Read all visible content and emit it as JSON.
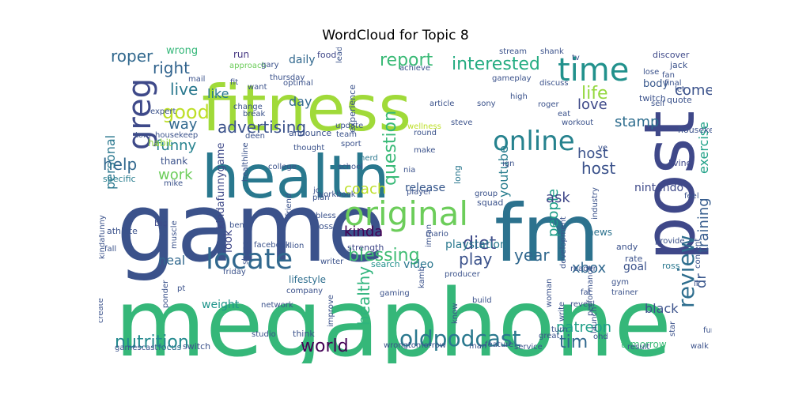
{
  "chart_data": {
    "type": "wordcloud",
    "title": "WordCloud for Topic 8",
    "words": [
      {
        "text": "megaphone",
        "color": "#35b779"
      },
      {
        "text": "game",
        "color": "#3b528b"
      },
      {
        "text": "fitness",
        "color": "#a0da39"
      },
      {
        "text": "health",
        "color": "#29788e"
      },
      {
        "text": "fm",
        "color": "#2c728e"
      },
      {
        "text": "post",
        "color": "#3f4889"
      },
      {
        "text": "original",
        "color": "#6ccd5a"
      },
      {
        "text": "time",
        "color": "#21918c"
      },
      {
        "text": "locate",
        "color": "#31688e"
      },
      {
        "text": "online",
        "color": "#26828e"
      },
      {
        "text": "greg",
        "color": "#3e4989"
      },
      {
        "text": "oldpodcast",
        "color": "#2a788e"
      },
      {
        "text": "review",
        "color": "#2e6e8e"
      },
      {
        "text": "nutrition",
        "color": "#23898e"
      },
      {
        "text": "report",
        "color": "#3aba76"
      },
      {
        "text": "interested",
        "color": "#25ac82"
      },
      {
        "text": "good",
        "color": "#bddf26"
      },
      {
        "text": "advertising",
        "color": "#3b528b"
      },
      {
        "text": "question",
        "color": "#38b977"
      },
      {
        "text": "blessing",
        "color": "#3fbc73"
      },
      {
        "text": "world",
        "color": "#440154"
      },
      {
        "text": "diet",
        "color": "#3e4a89"
      },
      {
        "text": "tim",
        "color": "#31688e"
      },
      {
        "text": "healthy",
        "color": "#2fb47c"
      },
      {
        "text": "life",
        "color": "#95d840"
      },
      {
        "text": "live",
        "color": "#29788e"
      },
      {
        "text": "help",
        "color": "#31688e"
      },
      {
        "text": "coach",
        "color": "#bddf26"
      },
      {
        "text": "play",
        "color": "#3b528b"
      },
      {
        "text": "year",
        "color": "#31688e"
      },
      {
        "text": "training",
        "color": "#365c8d"
      },
      {
        "text": "people",
        "color": "#1f9e89"
      },
      {
        "text": "roper",
        "color": "#31688e"
      },
      {
        "text": "right",
        "color": "#32648e"
      },
      {
        "text": "host",
        "color": "#3b528b"
      },
      {
        "text": "exercise",
        "color": "#1fa187"
      },
      {
        "text": "patreon",
        "color": "#1f9f88"
      },
      {
        "text": "funny",
        "color": "#26828e"
      },
      {
        "text": "personal",
        "color": "#2a778e"
      },
      {
        "text": "kinda",
        "color": "#440154"
      },
      {
        "text": "stamp",
        "color": "#2e6d8e"
      },
      {
        "text": "come",
        "color": "#3b528b"
      },
      {
        "text": "love",
        "color": "#3e4989"
      },
      {
        "text": "dr",
        "color": "#39568c"
      },
      {
        "text": "way",
        "color": "#31688e"
      },
      {
        "text": "day",
        "color": "#31688e"
      },
      {
        "text": "like",
        "color": "#29788e"
      },
      {
        "text": "work",
        "color": "#6ccd5a"
      },
      {
        "text": "youtube",
        "color": "#287d8e"
      },
      {
        "text": "ask",
        "color": "#3f4788"
      },
      {
        "text": "xbox",
        "color": "#31688e"
      },
      {
        "text": "neal",
        "color": "#31688e"
      },
      {
        "text": "release",
        "color": "#38588c"
      },
      {
        "text": "playstation",
        "color": "#29788e"
      },
      {
        "text": "weight",
        "color": "#1f958b"
      },
      {
        "text": "black",
        "color": "#3b528b"
      },
      {
        "text": "nintendo",
        "color": "#3e4989"
      },
      {
        "text": "video",
        "color": "#2a768e"
      },
      {
        "text": "goal",
        "color": "#3b528b"
      },
      {
        "text": "host",
        "color": "#3b528b"
      },
      {
        "text": "look",
        "color": "#3f4889"
      },
      {
        "text": "kindafunnygame",
        "color": "#3e4989"
      },
      {
        "text": "daily",
        "color": "#31688e"
      },
      {
        "text": "news",
        "color": "#2c728e"
      },
      {
        "text": "lifestyle",
        "color": "#2e6e8e"
      },
      {
        "text": "body",
        "color": "#38588c"
      },
      {
        "text": "wrong",
        "color": "#35b779"
      },
      {
        "text": "habit",
        "color": "#95d840"
      },
      {
        "text": "thank",
        "color": "#3b528b"
      },
      {
        "text": "tomorrow",
        "color": "#3aba76"
      },
      {
        "text": "run",
        "color": "#453781"
      },
      {
        "text": "food",
        "color": "#3f4788"
      },
      {
        "text": "strength",
        "color": "#3f4788"
      },
      {
        "text": "ben",
        "color": "#3b528b"
      },
      {
        "text": "athlete",
        "color": "#3b528b"
      },
      {
        "text": "network",
        "color": "#3b528b"
      },
      {
        "text": "switch",
        "color": "#3b528b"
      },
      {
        "text": "focus",
        "color": "#2e6e8e"
      },
      {
        "text": "think",
        "color": "#3b528b"
      },
      {
        "text": "big",
        "color": "#3e4989"
      },
      {
        "text": "specific",
        "color": "#287d8e"
      },
      {
        "text": "andy",
        "color": "#3b528b"
      },
      {
        "text": "rate",
        "color": "#3b528b"
      },
      {
        "text": "squad",
        "color": "#3b528b"
      },
      {
        "text": "long",
        "color": "#2a778e"
      },
      {
        "text": "living",
        "color": "#3f4889"
      },
      {
        "text": "quote",
        "color": "#3b528b"
      },
      {
        "text": "twitch",
        "color": "#3b528b"
      },
      {
        "text": "ross",
        "color": "#2a778e"
      },
      {
        "text": "search",
        "color": "#21918c"
      },
      {
        "text": "loss",
        "color": "#3b528b"
      },
      {
        "text": "announce",
        "color": "#3b528b"
      },
      {
        "text": "experience",
        "color": "#3b528b"
      },
      {
        "text": "article",
        "color": "#3b528b"
      },
      {
        "text": "steve",
        "color": "#3b528b"
      },
      {
        "text": "producer",
        "color": "#3b528b"
      },
      {
        "text": "wellness",
        "color": "#bddf26"
      },
      {
        "text": "stream",
        "color": "#3b528b"
      },
      {
        "text": "discover",
        "color": "#3e4989"
      },
      {
        "text": "jack",
        "color": "#3b528b"
      },
      {
        "text": "approach",
        "color": "#6ccd5a"
      },
      {
        "text": "change",
        "color": "#3b528b"
      },
      {
        "text": "want",
        "color": "#3b528b"
      },
      {
        "text": "optimal",
        "color": "#3b528b"
      },
      {
        "text": "housekeeping",
        "color": "#3b528b"
      },
      {
        "text": "ign",
        "color": "#3b528b"
      },
      {
        "text": "nerd",
        "color": "#2a778e"
      },
      {
        "text": "nia",
        "color": "#3b528b"
      },
      {
        "text": "group",
        "color": "#3b528b"
      },
      {
        "text": "player",
        "color": "#3b528b"
      },
      {
        "text": "friend",
        "color": "#3b528b"
      },
      {
        "text": "mike",
        "color": "#3b528b"
      },
      {
        "text": "week",
        "color": "#3b528b"
      },
      {
        "text": "muscle",
        "color": "#3b528b"
      },
      {
        "text": "million",
        "color": "#3b528b"
      },
      {
        "text": "facebook",
        "color": "#3b528b"
      },
      {
        "text": "writer",
        "color": "#3b528b"
      },
      {
        "text": "friday",
        "color": "#3b528b"
      },
      {
        "text": "performance",
        "color": "#3b528b"
      },
      {
        "text": "development",
        "color": "#3b528b"
      },
      {
        "text": "industry",
        "color": "#3b528b"
      },
      {
        "text": "provide",
        "color": "#3b528b"
      },
      {
        "text": "feel",
        "color": "#3b528b"
      },
      {
        "text": "content",
        "color": "#3b528b"
      },
      {
        "text": "fat",
        "color": "#3b528b"
      },
      {
        "text": "ohd",
        "color": "#3b528b"
      },
      {
        "text": "reveal",
        "color": "#3b528b"
      },
      {
        "text": "woman",
        "color": "#3b528b"
      },
      {
        "text": "know",
        "color": "#3b528b"
      },
      {
        "text": "build",
        "color": "#3b528b"
      },
      {
        "text": "great",
        "color": "#3b528b"
      },
      {
        "text": "service",
        "color": "#3b528b"
      },
      {
        "text": "feature",
        "color": "#3b528b"
      },
      {
        "text": "man",
        "color": "#3b528b"
      },
      {
        "text": "walk",
        "color": "#3b528b"
      },
      {
        "text": "star",
        "color": "#3b528b"
      },
      {
        "text": "result",
        "color": "#3b528b"
      },
      {
        "text": "create",
        "color": "#3b528b"
      },
      {
        "text": "gamescast",
        "color": "#3b528b"
      },
      {
        "text": "studio",
        "color": "#3b528b"
      },
      {
        "text": "wrongtomorrow",
        "color": "#3b528b"
      },
      {
        "text": "improve",
        "color": "#3b528b"
      },
      {
        "text": "fall",
        "color": "#3b528b"
      },
      {
        "text": "kindafunny",
        "color": "#3b528b"
      },
      {
        "text": "pt",
        "color": "#3b528b"
      },
      {
        "text": "ponder",
        "color": "#3b528b"
      },
      {
        "text": "company",
        "color": "#3b528b"
      },
      {
        "text": "gaming",
        "color": "#3b528b"
      },
      {
        "text": "kamb",
        "color": "#3b528b"
      },
      {
        "text": "mario",
        "color": "#3b528b"
      },
      {
        "text": "imran",
        "color": "#3b528b"
      },
      {
        "text": "bless",
        "color": "#3b528b"
      },
      {
        "text": "plan",
        "color": "#3b528b"
      },
      {
        "text": "workbook",
        "color": "#3b528b"
      },
      {
        "text": "shape",
        "color": "#3b528b"
      },
      {
        "text": "college",
        "color": "#3b528b"
      },
      {
        "text": "school",
        "color": "#3b528b"
      },
      {
        "text": "jc",
        "color": "#3b528b"
      },
      {
        "text": "thought",
        "color": "#3b528b"
      },
      {
        "text": "healthline",
        "color": "#3b528b"
      },
      {
        "text": "deen",
        "color": "#3b528b"
      },
      {
        "text": "housekeep",
        "color": "#3b528b"
      },
      {
        "text": "tom",
        "color": "#3b528b"
      },
      {
        "text": "expert",
        "color": "#3b528b"
      },
      {
        "text": "break",
        "color": "#3b528b"
      },
      {
        "text": "sport",
        "color": "#3b528b"
      },
      {
        "text": "team",
        "color": "#3b528b"
      },
      {
        "text": "update",
        "color": "#3b528b"
      },
      {
        "text": "thursday",
        "color": "#3b528b"
      },
      {
        "text": "gary",
        "color": "#3b528b"
      },
      {
        "text": "lead",
        "color": "#3b528b"
      },
      {
        "text": "achieve",
        "color": "#3b528b"
      },
      {
        "text": "fit",
        "color": "#3b528b"
      },
      {
        "text": "mail",
        "color": "#3b528b"
      },
      {
        "text": "round",
        "color": "#3b528b"
      },
      {
        "text": "make",
        "color": "#3b528b"
      },
      {
        "text": "workout",
        "color": "#3b528b"
      },
      {
        "text": "sony",
        "color": "#3b528b"
      },
      {
        "text": "roger",
        "color": "#3b528b"
      },
      {
        "text": "eat",
        "color": "#3b528b"
      },
      {
        "text": "high",
        "color": "#3b528b"
      },
      {
        "text": "discuss",
        "color": "#3b528b"
      },
      {
        "text": "gameplay",
        "color": "#3b528b"
      },
      {
        "text": "shank",
        "color": "#3b528b"
      },
      {
        "text": "tv",
        "color": "#3b528b"
      },
      {
        "text": "lose",
        "color": "#3b528b"
      },
      {
        "text": "final",
        "color": "#3b528b"
      },
      {
        "text": "self",
        "color": "#3b528b"
      },
      {
        "text": "fan",
        "color": "#3b528b"
      },
      {
        "text": "let",
        "color": "#3b528b"
      },
      {
        "text": "ve",
        "color": "#3b528b"
      },
      {
        "text": "gym",
        "color": "#3b528b"
      },
      {
        "text": "trainer",
        "color": "#3b528b"
      },
      {
        "text": "reader",
        "color": "#3b528b"
      },
      {
        "text": "turn",
        "color": "#3b528b"
      },
      {
        "text": "write",
        "color": "#3b528b"
      },
      {
        "text": "launch",
        "color": "#3b528b"
      },
      {
        "text": "fun",
        "color": "#3b528b"
      },
      {
        "text": "ll",
        "color": "#3b528b"
      }
    ]
  }
}
